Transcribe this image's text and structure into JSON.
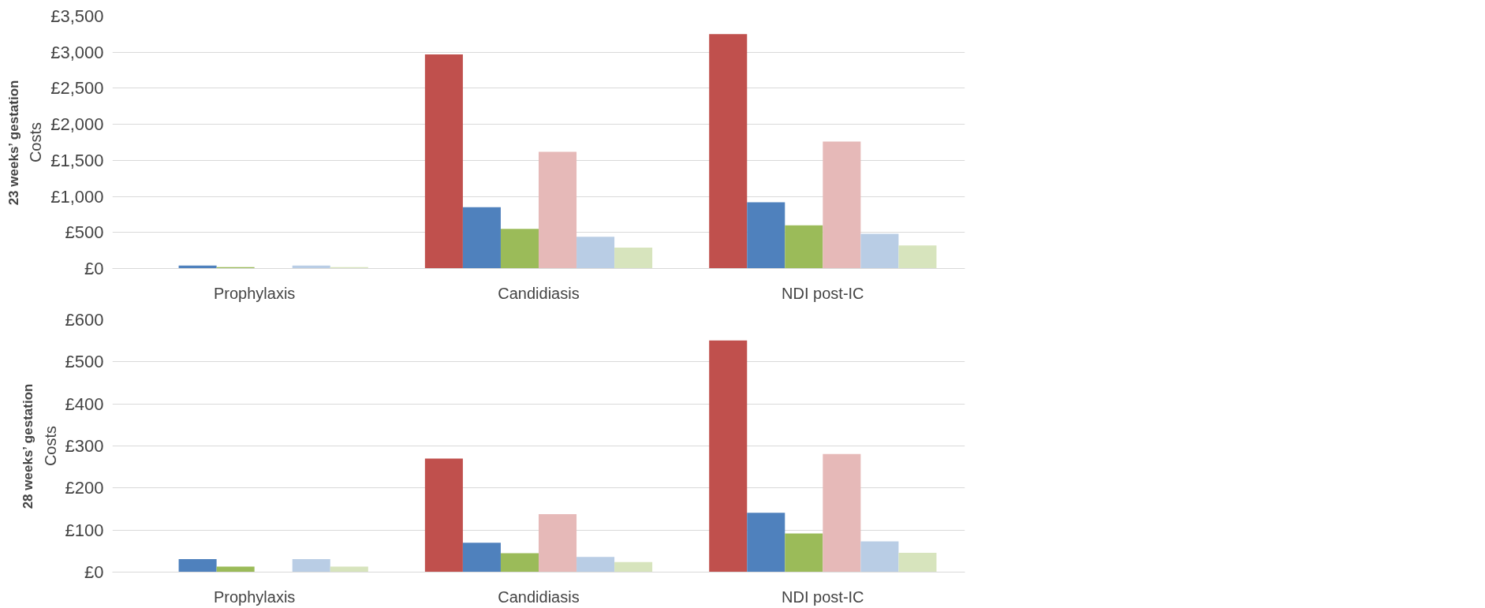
{
  "chart_data": [
    {
      "type": "bar",
      "title": "23 weeks’ gestation",
      "ylabel": "Costs",
      "categories": [
        "Prophylaxis",
        "Candidiasis",
        "NDI post-IC"
      ],
      "series": [
        {
          "color": "#c0504d",
          "values": [
            0,
            2970,
            3250
          ]
        },
        {
          "color": "#4f81bd",
          "values": [
            40,
            850,
            920
          ]
        },
        {
          "color": "#9bbb59",
          "values": [
            20,
            550,
            600
          ]
        },
        {
          "color": "#e6b9b8",
          "values": [
            0,
            1620,
            1760
          ]
        },
        {
          "color": "#b9cde5",
          "values": [
            40,
            440,
            480
          ]
        },
        {
          "color": "#d7e4bd",
          "values": [
            20,
            290,
            320
          ]
        }
      ],
      "ylim": [
        0,
        3500
      ],
      "yticks": [
        {
          "value": 0,
          "label": "£0"
        },
        {
          "value": 500,
          "label": "£500"
        },
        {
          "value": 1000,
          "label": "£1,000"
        },
        {
          "value": 1500,
          "label": "£1,500"
        },
        {
          "value": 2000,
          "label": "£2,000"
        },
        {
          "value": 2500,
          "label": "£2,500"
        },
        {
          "value": 3000,
          "label": "£3,000"
        },
        {
          "value": 3500,
          "label": "£3,500"
        }
      ],
      "grid": "y"
    },
    {
      "type": "bar",
      "title": "28 weeks’ gestation",
      "ylabel": "Costs",
      "categories": [
        "Prophylaxis",
        "Candidiasis",
        "NDI post-IC"
      ],
      "series": [
        {
          "color": "#c0504d",
          "values": [
            0,
            270,
            551
          ]
        },
        {
          "color": "#4f81bd",
          "values": [
            31,
            70,
            141
          ]
        },
        {
          "color": "#9bbb59",
          "values": [
            13,
            45,
            92
          ]
        },
        {
          "color": "#e6b9b8",
          "values": [
            0,
            138,
            281
          ]
        },
        {
          "color": "#b9cde5",
          "values": [
            31,
            36,
            73
          ]
        },
        {
          "color": "#d7e4bd",
          "values": [
            13,
            24,
            46
          ]
        }
      ],
      "ylim": [
        0,
        600
      ],
      "yticks": [
        {
          "value": 0,
          "label": "£0"
        },
        {
          "value": 100,
          "label": "£100"
        },
        {
          "value": 200,
          "label": "£200"
        },
        {
          "value": 300,
          "label": "£300"
        },
        {
          "value": 400,
          "label": "£400"
        },
        {
          "value": 500,
          "label": "£500"
        },
        {
          "value": 600,
          "label": "£600"
        }
      ],
      "grid": "y"
    }
  ]
}
